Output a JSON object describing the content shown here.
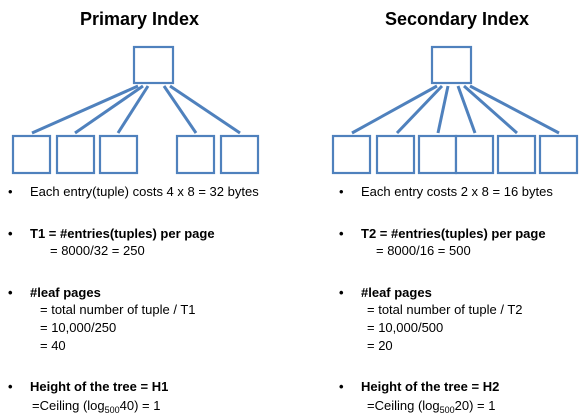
{
  "left": {
    "title": "Primary Index",
    "entry_cost": "Each entry(tuple) costs 4 x 8 = 32 bytes",
    "t_label": "T1 = #entries(tuples) per page",
    "t_value": "= 8000/32 = 250",
    "leaf_label": "#leaf pages",
    "leaf_line1": "= total number of tuple / T1",
    "leaf_line2": "= 10,000/250",
    "leaf_line3": "= 40",
    "height_label": "Height of the tree = H1",
    "height_prefix": "=Ceiling (log",
    "height_base": "500",
    "height_suffix": "40)  = 1"
  },
  "right": {
    "title": "Secondary Index",
    "entry_cost": "Each entry costs 2 x 8 = 16 bytes",
    "t_label": "T2 = #entries(tuples) per page",
    "t_value": "= 8000/16 = 500",
    "leaf_label": "#leaf pages",
    "leaf_line1": "= total number of tuple / T2",
    "leaf_line2": "= 10,000/500",
    "leaf_line3": "= 20",
    "height_label": "Height of the tree = H2",
    "height_prefix": "=Ceiling (log",
    "height_base": "500",
    "height_suffix": "20)  = 1"
  },
  "colors": {
    "node_stroke": "#4f81bd",
    "node_fill": "#ffffff"
  }
}
